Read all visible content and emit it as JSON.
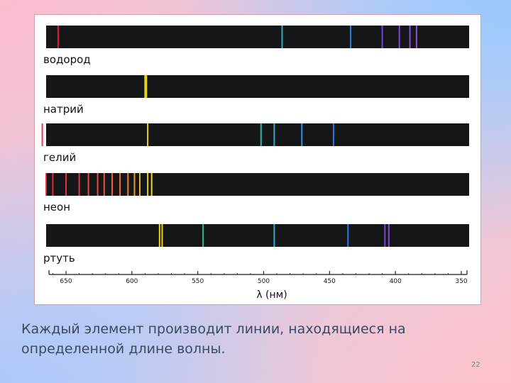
{
  "figure": {
    "axis_label": "λ (нм)",
    "axis_ticks": [
      {
        "label": "650",
        "nm": 650
      },
      {
        "label": "600",
        "nm": 600
      },
      {
        "label": "550",
        "nm": 550
      },
      {
        "label": "500",
        "nm": 500
      },
      {
        "label": "450",
        "nm": 450
      },
      {
        "label": "400",
        "nm": 400
      },
      {
        "label": "350",
        "nm": 350
      }
    ],
    "spectra": [
      {
        "label": "водород",
        "lines": [
          {
            "nm": 656,
            "color": "#e8203c"
          },
          {
            "nm": 486,
            "color": "#2fb8c8"
          },
          {
            "nm": 434,
            "color": "#2d7cf0"
          },
          {
            "nm": 410,
            "color": "#7a4ad8"
          },
          {
            "nm": 397,
            "color": "#8a4ae0"
          },
          {
            "nm": 389,
            "color": "#8a50e4"
          },
          {
            "nm": 384,
            "color": "#9a50e8"
          }
        ]
      },
      {
        "label": "натрий",
        "lines": [
          {
            "nm": 590,
            "color": "#f4e21a"
          },
          {
            "nm": 589,
            "color": "#f4e21a"
          }
        ]
      },
      {
        "label": "гелий",
        "lines": [
          {
            "nm": 668,
            "color": "#ee2b3b"
          },
          {
            "nm": 588,
            "color": "#f0dc1a"
          },
          {
            "nm": 502,
            "color": "#2fbcb8"
          },
          {
            "nm": 492,
            "color": "#2fb2d0"
          },
          {
            "nm": 471,
            "color": "#2e9cf0"
          },
          {
            "nm": 447,
            "color": "#2d7cf0"
          }
        ]
      },
      {
        "label": "неон",
        "lines": [
          {
            "nm": 665,
            "color": "#e8203c"
          },
          {
            "nm": 660,
            "color": "#ec2a3e"
          },
          {
            "nm": 650,
            "color": "#ef3344"
          },
          {
            "nm": 640,
            "color": "#f0364a"
          },
          {
            "nm": 633,
            "color": "#f24a50"
          },
          {
            "nm": 626,
            "color": "#f25048"
          },
          {
            "nm": 621,
            "color": "#f35a42"
          },
          {
            "nm": 615,
            "color": "#f4643c"
          },
          {
            "nm": 609,
            "color": "#f57236"
          },
          {
            "nm": 603,
            "color": "#f68a30"
          },
          {
            "nm": 598,
            "color": "#f8a02c"
          },
          {
            "nm": 594,
            "color": "#f7b628"
          },
          {
            "nm": 588,
            "color": "#f2d420"
          },
          {
            "nm": 585,
            "color": "#f0e01a"
          }
        ]
      },
      {
        "label": "ртуть",
        "lines": [
          {
            "nm": 579,
            "color": "#f2dc1c"
          },
          {
            "nm": 577,
            "color": "#f2dc1c"
          },
          {
            "nm": 546,
            "color": "#2fc08a"
          },
          {
            "nm": 492,
            "color": "#2fb2d0"
          },
          {
            "nm": 436,
            "color": "#2d7cf0"
          },
          {
            "nm": 408,
            "color": "#7a4ad8"
          },
          {
            "nm": 405,
            "color": "#8a4ae0"
          }
        ]
      }
    ]
  },
  "caption": "Каждый элемент производит линии, находящиеся на определенной длине волны.",
  "slide_number": "22"
}
